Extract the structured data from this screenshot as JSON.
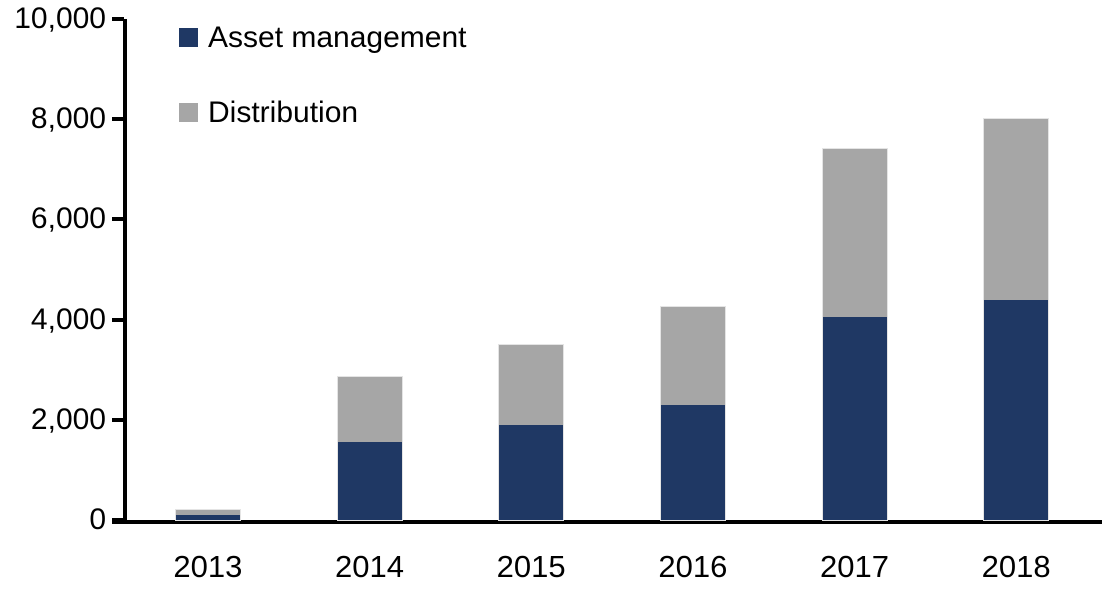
{
  "chart_data": {
    "type": "bar",
    "stacked": true,
    "title": "",
    "xlabel": "",
    "ylabel": "",
    "categories": [
      "2013",
      "2014",
      "2015",
      "2016",
      "2017",
      "2018"
    ],
    "series": [
      {
        "name": "Asset management",
        "color": "#1F3864",
        "values": [
          100,
          1550,
          1900,
          2300,
          4050,
          4400
        ]
      },
      {
        "name": "Distribution",
        "color": "#A6A6A6",
        "values": [
          100,
          1300,
          1600,
          1950,
          3350,
          3600
        ]
      }
    ],
    "totals": [
      200,
      2850,
      3500,
      4250,
      7400,
      8000
    ],
    "ylim": [
      0,
      10000
    ],
    "y_ticks": [
      10000,
      8000,
      6000,
      4000,
      2000,
      0
    ],
    "y_tick_labels": [
      "10,000",
      "8,000",
      "6,000",
      "4,000",
      "2,000",
      "0"
    ],
    "grid": false,
    "legend_position": "top-left",
    "axis_color": "#000000",
    "text_color": "#000000",
    "background_color": "#ffffff"
  }
}
